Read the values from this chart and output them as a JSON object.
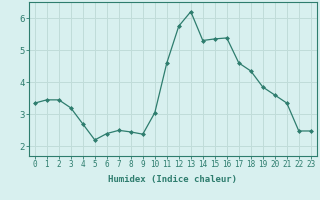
{
  "x": [
    0,
    1,
    2,
    3,
    4,
    5,
    6,
    7,
    8,
    9,
    10,
    11,
    12,
    13,
    14,
    15,
    16,
    17,
    18,
    19,
    20,
    21,
    22,
    23
  ],
  "y": [
    3.35,
    3.45,
    3.45,
    3.2,
    2.7,
    2.2,
    2.4,
    2.5,
    2.45,
    2.38,
    3.05,
    4.6,
    5.75,
    6.2,
    5.3,
    5.35,
    5.38,
    4.6,
    4.35,
    3.85,
    3.6,
    3.35,
    2.48,
    2.48
  ],
  "line_color": "#2e7d6e",
  "marker": "D",
  "marker_size": 2.0,
  "bg_color": "#d8f0ef",
  "grid_color": "#c0dcd9",
  "xlabel": "Humidex (Indice chaleur)",
  "ylabel": "",
  "xlim": [
    -0.5,
    23.5
  ],
  "ylim": [
    1.7,
    6.5
  ],
  "yticks": [
    2,
    3,
    4,
    5,
    6
  ],
  "xticks": [
    0,
    1,
    2,
    3,
    4,
    5,
    6,
    7,
    8,
    9,
    10,
    11,
    12,
    13,
    14,
    15,
    16,
    17,
    18,
    19,
    20,
    21,
    22,
    23
  ],
  "xtick_labels": [
    "0",
    "1",
    "2",
    "3",
    "4",
    "5",
    "6",
    "7",
    "8",
    "9",
    "10",
    "11",
    "12",
    "13",
    "14",
    "15",
    "16",
    "17",
    "18",
    "19",
    "20",
    "21",
    "22",
    "23"
  ],
  "tick_color": "#2e7d6e",
  "axis_color": "#2e7d6e",
  "label_fontsize": 6.5,
  "tick_fontsize": 5.5
}
